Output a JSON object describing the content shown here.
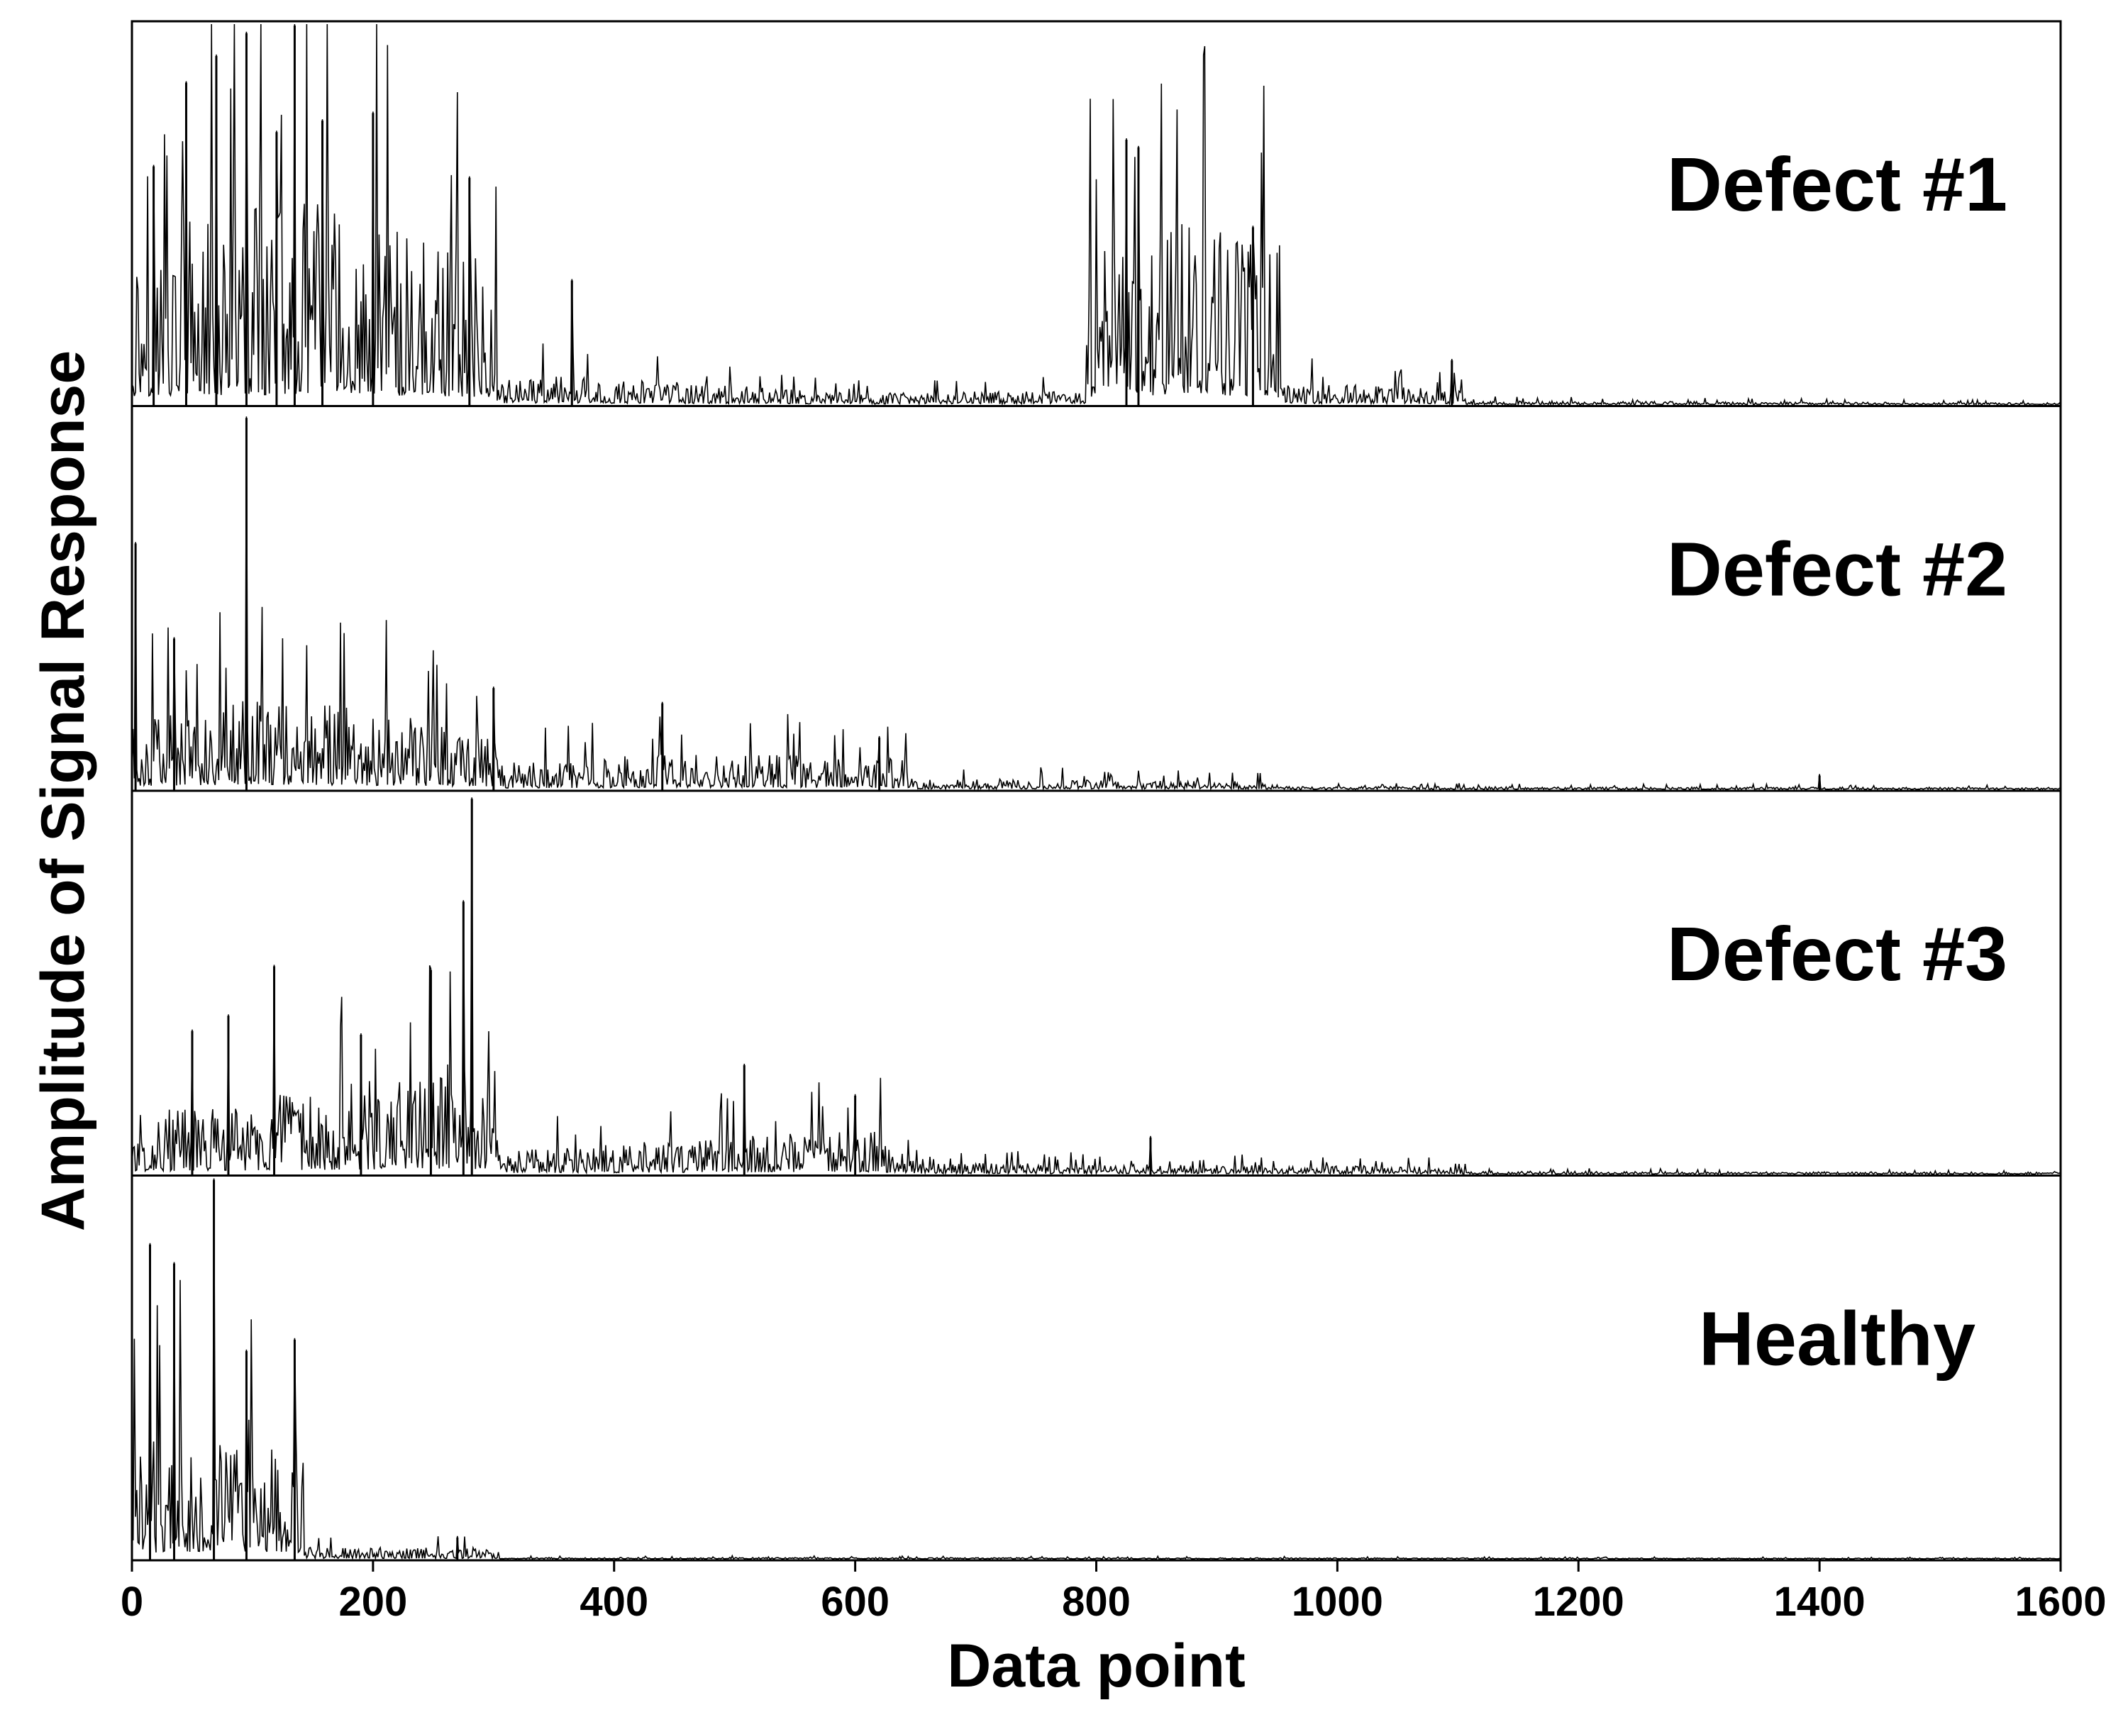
{
  "chart_data": {
    "type": "line",
    "layout": "stacked panels sharing one x axis",
    "xlabel": "Data point",
    "ylabel": "Amplitude of Signal Response",
    "xlim": [
      0,
      1600
    ],
    "xticks": [
      0,
      200,
      400,
      600,
      800,
      1000,
      1200,
      1400,
      1600
    ],
    "grid": false,
    "legend": "none",
    "line_color": "#000000",
    "panels": [
      {
        "label": "Defect #1",
        "envelope": [
          {
            "x": 0,
            "amp": 0.45
          },
          {
            "x": 150,
            "amp": 0.55
          },
          {
            "x": 300,
            "amp": 0.4
          },
          {
            "x": 305,
            "amp": 0.08
          },
          {
            "x": 450,
            "amp": 0.06
          },
          {
            "x": 600,
            "amp": 0.03
          },
          {
            "x": 790,
            "amp": 0.04
          },
          {
            "x": 795,
            "amp": 0.42
          },
          {
            "x": 870,
            "amp": 0.52
          },
          {
            "x": 950,
            "amp": 0.44
          },
          {
            "x": 955,
            "amp": 0.06
          },
          {
            "x": 1100,
            "amp": 0.04
          },
          {
            "x": 1110,
            "amp": 0.01
          },
          {
            "x": 1600,
            "amp": 0.005
          }
        ],
        "peaks": [
          {
            "x": 18,
            "amp": 0.63
          },
          {
            "x": 45,
            "amp": 0.85
          },
          {
            "x": 70,
            "amp": 0.92
          },
          {
            "x": 95,
            "amp": 0.98
          },
          {
            "x": 120,
            "amp": 0.72
          },
          {
            "x": 135,
            "amp": 1.0
          },
          {
            "x": 158,
            "amp": 0.75
          },
          {
            "x": 200,
            "amp": 0.77
          },
          {
            "x": 280,
            "amp": 0.6
          },
          {
            "x": 365,
            "amp": 0.33
          },
          {
            "x": 825,
            "amp": 0.7
          },
          {
            "x": 835,
            "amp": 0.68
          },
          {
            "x": 930,
            "amp": 0.47
          },
          {
            "x": 1095,
            "amp": 0.12
          }
        ]
      },
      {
        "label": "Defect #2",
        "envelope": [
          {
            "x": 0,
            "amp": 0.18
          },
          {
            "x": 100,
            "amp": 0.26
          },
          {
            "x": 300,
            "amp": 0.16
          },
          {
            "x": 310,
            "amp": 0.07
          },
          {
            "x": 450,
            "amp": 0.1
          },
          {
            "x": 640,
            "amp": 0.08
          },
          {
            "x": 650,
            "amp": 0.03
          },
          {
            "x": 950,
            "amp": 0.02
          },
          {
            "x": 960,
            "amp": 0.008
          },
          {
            "x": 1600,
            "amp": 0.005
          }
        ],
        "peaks": [
          {
            "x": 3,
            "amp": 0.65
          },
          {
            "x": 35,
            "amp": 0.4
          },
          {
            "x": 95,
            "amp": 0.98
          },
          {
            "x": 300,
            "amp": 0.27
          },
          {
            "x": 440,
            "amp": 0.23
          },
          {
            "x": 620,
            "amp": 0.14
          },
          {
            "x": 1400,
            "amp": 0.04
          }
        ]
      },
      {
        "label": "Defect #3",
        "envelope": [
          {
            "x": 0,
            "amp": 0.16
          },
          {
            "x": 150,
            "amp": 0.22
          },
          {
            "x": 280,
            "amp": 0.3
          },
          {
            "x": 300,
            "amp": 0.18
          },
          {
            "x": 305,
            "amp": 0.06
          },
          {
            "x": 450,
            "amp": 0.09
          },
          {
            "x": 620,
            "amp": 0.12
          },
          {
            "x": 650,
            "amp": 0.03
          },
          {
            "x": 1100,
            "amp": 0.02
          },
          {
            "x": 1110,
            "amp": 0.008
          },
          {
            "x": 1600,
            "amp": 0.005
          }
        ],
        "peaks": [
          {
            "x": 50,
            "amp": 0.38
          },
          {
            "x": 80,
            "amp": 0.42
          },
          {
            "x": 118,
            "amp": 0.55
          },
          {
            "x": 190,
            "amp": 0.37
          },
          {
            "x": 248,
            "amp": 0.54
          },
          {
            "x": 275,
            "amp": 0.72
          },
          {
            "x": 282,
            "amp": 0.99
          },
          {
            "x": 508,
            "amp": 0.29
          },
          {
            "x": 600,
            "amp": 0.21
          },
          {
            "x": 845,
            "amp": 0.1
          }
        ]
      },
      {
        "label": "Healthy",
        "envelope": [
          {
            "x": 0,
            "amp": 0.32
          },
          {
            "x": 60,
            "amp": 0.38
          },
          {
            "x": 140,
            "amp": 0.35
          },
          {
            "x": 143,
            "amp": 0.03
          },
          {
            "x": 300,
            "amp": 0.03
          },
          {
            "x": 305,
            "amp": 0.004
          },
          {
            "x": 1600,
            "amp": 0.002
          }
        ],
        "peaks": [
          {
            "x": 15,
            "amp": 0.83
          },
          {
            "x": 35,
            "amp": 0.78
          },
          {
            "x": 68,
            "amp": 1.0
          },
          {
            "x": 95,
            "amp": 0.55
          },
          {
            "x": 135,
            "amp": 0.58
          },
          {
            "x": 270,
            "amp": 0.06
          }
        ]
      }
    ]
  }
}
